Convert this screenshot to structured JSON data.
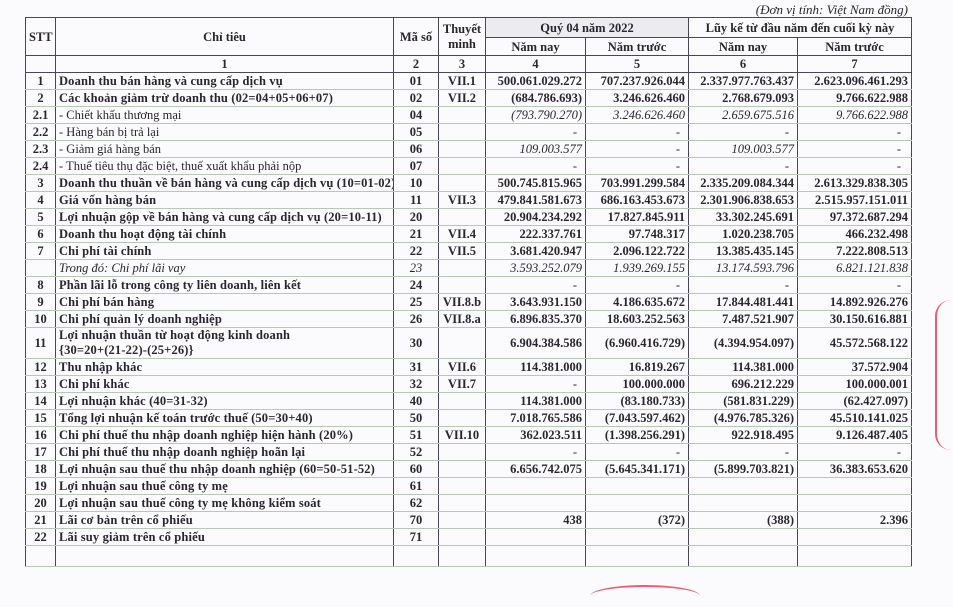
{
  "unit_note": "(Đơn vị tính: Việt Nam đồng)",
  "header": {
    "stt": "STT",
    "item": "Chỉ tiêu",
    "code": "Mã số",
    "note": "Thuyết minh",
    "quarter": "Quý 04 năm 2022",
    "cumulative": "Lũy kế từ đầu năm đến cuối kỳ này",
    "this_year": "Năm nay",
    "last_year": "Năm trước",
    "col_numbers": [
      "1",
      "2",
      "3",
      "4",
      "5",
      "6",
      "7"
    ]
  },
  "rows": [
    {
      "stt": "1",
      "label": "Doanh thu bán hàng và cung cấp dịch vụ",
      "code": "01",
      "note": "VII.1",
      "values": [
        "500.061.029.272",
        "707.237.926.044",
        "2.337.977.763.437",
        "2.623.096.461.293"
      ],
      "style": "bold"
    },
    {
      "stt": "2",
      "label": "Các khoản giảm trừ doanh thu (02=04+05+06+07)",
      "code": "02",
      "note": "VII.2",
      "values": [
        "(684.786.693)",
        "3.246.626.460",
        "2.768.679.093",
        "9.766.622.988"
      ],
      "style": "bold"
    },
    {
      "stt": "2.1",
      "label": " - Chiết khấu thương mại",
      "code": "04",
      "note": "",
      "values": [
        "(793.790.270)",
        "3.246.626.460",
        "2.659.675.516",
        "9.766.622.988"
      ],
      "style": "normal-italicvals"
    },
    {
      "stt": "2.2",
      "label": " - Hàng bán bị trả lại",
      "code": "05",
      "note": "",
      "values": [
        "-",
        "-",
        "-",
        "-"
      ],
      "style": "normal"
    },
    {
      "stt": "2.3",
      "label": " - Giảm giá hàng bán",
      "code": "06",
      "note": "",
      "values": [
        "109.003.577",
        "-",
        "109.003.577",
        "-"
      ],
      "style": "normal-italicvals"
    },
    {
      "stt": "2.4",
      "label": " - Thuế tiêu thụ đặc biệt, thuế xuất khẩu phải nộp",
      "code": "07",
      "note": "",
      "values": [
        "-",
        "-",
        "-",
        "-"
      ],
      "style": "normal"
    },
    {
      "stt": "3",
      "label": "Doanh thu thuần về bán hàng và cung cấp dịch vụ (10=01-02)",
      "code": "10",
      "note": "",
      "values": [
        "500.745.815.965",
        "703.991.299.584",
        "2.335.209.084.344",
        "2.613.329.838.305"
      ],
      "style": "bold"
    },
    {
      "stt": "4",
      "label": "Giá vốn hàng bán",
      "code": "11",
      "note": "VII.3",
      "values": [
        "479.841.581.673",
        "686.163.453.673",
        "2.301.906.838.653",
        "2.515.957.151.011"
      ],
      "style": "bold"
    },
    {
      "stt": "5",
      "label": "Lợi nhuận gộp về bán hàng và cung cấp dịch vụ (20=10-11)",
      "code": "20",
      "note": "",
      "values": [
        "20.904.234.292",
        "17.827.845.911",
        "33.302.245.691",
        "97.372.687.294"
      ],
      "style": "bold"
    },
    {
      "stt": "6",
      "label": "Doanh thu hoạt động tài chính",
      "code": "21",
      "note": "VII.4",
      "values": [
        "222.337.761",
        "97.748.317",
        "1.020.238.705",
        "466.232.498"
      ],
      "style": "bold"
    },
    {
      "stt": "7",
      "label": "Chi phí tài chính",
      "code": "22",
      "note": "VII.5",
      "values": [
        "3.681.420.947",
        "2.096.122.722",
        "13.385.435.145",
        "7.222.808.513"
      ],
      "style": "bold"
    },
    {
      "stt": "",
      "label": "Trong đó: Chi phí lãi vay",
      "code": "23",
      "note": "",
      "values": [
        "3.593.252.079",
        "1.939.269.155",
        "13.174.593.796",
        "6.821.121.838"
      ],
      "style": "italic"
    },
    {
      "stt": "8",
      "label": "Phần lãi lỗ trong công ty liên doanh, liên kết",
      "code": "24",
      "note": "",
      "values": [
        "-",
        "-",
        "-",
        "-"
      ],
      "style": "bold"
    },
    {
      "stt": "9",
      "label": "Chi phí bán hàng",
      "code": "25",
      "note": "VII.8.b",
      "values": [
        "3.643.931.150",
        "4.186.635.672",
        "17.844.481.441",
        "14.892.926.276"
      ],
      "style": "bold"
    },
    {
      "stt": "10",
      "label": "Chi phí quản lý doanh nghiệp",
      "code": "26",
      "note": "VII.8.a",
      "values": [
        "6.896.835.370",
        "18.603.252.563",
        "7.487.521.907",
        "30.150.616.881"
      ],
      "style": "bold"
    },
    {
      "stt": "11",
      "label": "Lợi nhuận thuần từ hoạt động kinh doanh",
      "label2": "{30=20+(21-22)-(25+26)}",
      "code": "30",
      "note": "",
      "values": [
        "6.904.384.586",
        "(6.960.416.729)",
        "(4.394.954.097)",
        "45.572.568.122"
      ],
      "style": "bold"
    },
    {
      "stt": "12",
      "label": "Thu nhập khác",
      "code": "31",
      "note": "VII.6",
      "values": [
        "114.381.000",
        "16.819.267",
        "114.381.000",
        "37.572.904"
      ],
      "style": "bold"
    },
    {
      "stt": "13",
      "label": "Chi phí khác",
      "code": "32",
      "note": "VII.7",
      "values": [
        "-",
        "100.000.000",
        "696.212.229",
        "100.000.001"
      ],
      "style": "bold"
    },
    {
      "stt": "14",
      "label": "Lợi nhuận khác (40=31-32)",
      "code": "40",
      "note": "",
      "values": [
        "114.381.000",
        "(83.180.733)",
        "(581.831.229)",
        "(62.427.097)"
      ],
      "style": "bold"
    },
    {
      "stt": "15",
      "label": "Tổng lợi nhuận kế toán trước thuế (50=30+40)",
      "code": "50",
      "note": "",
      "values": [
        "7.018.765.586",
        "(7.043.597.462)",
        "(4.976.785.326)",
        "45.510.141.025"
      ],
      "style": "bold"
    },
    {
      "stt": "16",
      "label": "Chi phí thuế thu nhập doanh nghiệp hiện hành (20%)",
      "code": "51",
      "note": "VII.10",
      "values": [
        "362.023.511",
        "(1.398.256.291)",
        "922.918.495",
        "9.126.487.405"
      ],
      "style": "bold"
    },
    {
      "stt": "17",
      "label": "Chi phí thuế thu nhập doanh nghiệp hoãn lại",
      "code": "52",
      "note": "",
      "values": [
        "-",
        "-",
        "-",
        "-"
      ],
      "style": "bold"
    },
    {
      "stt": "18",
      "label": "Lợi nhuận sau thuế thu nhập doanh nghiệp (60=50-51-52)",
      "code": "60",
      "note": "",
      "values": [
        "6.656.742.075",
        "(5.645.341.171)",
        "(5.899.703.821)",
        "36.383.653.620"
      ],
      "style": "bold"
    },
    {
      "stt": "19",
      "label": "Lợi nhuận sau thuế công ty mẹ",
      "code": "61",
      "note": "",
      "values": [
        "",
        "",
        "",
        ""
      ],
      "style": "bold"
    },
    {
      "stt": "20",
      "label": "Lợi nhuận sau thuế công ty mẹ không kiểm soát",
      "code": "62",
      "note": "",
      "values": [
        "",
        "",
        "",
        ""
      ],
      "style": "bold"
    },
    {
      "stt": "21",
      "label": "Lãi cơ bản trên cổ phiếu",
      "code": "70",
      "note": "",
      "values": [
        "438",
        "(372)",
        "(388)",
        "2.396"
      ],
      "style": "bold"
    },
    {
      "stt": "22",
      "label": "Lãi suy giảm trên cổ phiếu",
      "code": "71",
      "note": "",
      "values": [
        "",
        "",
        "",
        ""
      ],
      "style": "bold"
    }
  ],
  "colors": {
    "ink": "#2a2530",
    "stamp": "#e8384a",
    "rule": "#4a4658"
  }
}
